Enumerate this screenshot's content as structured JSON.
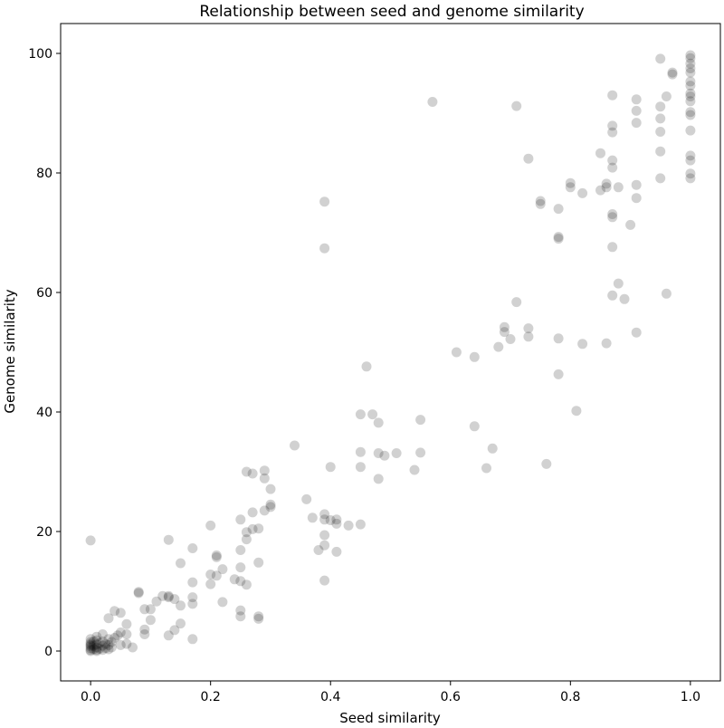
{
  "chart_data": {
    "type": "scatter",
    "title": "Relationship between seed and genome similarity",
    "xlabel": "Seed similarity",
    "ylabel": "Genome similarity",
    "xlim": [
      -0.05,
      1.05
    ],
    "ylim": [
      -5,
      105
    ],
    "xticks": [
      0.0,
      0.2,
      0.4,
      0.6,
      0.8,
      1.0
    ],
    "xtick_labels": [
      "0.0",
      "0.2",
      "0.4",
      "0.6",
      "0.8",
      "1.0"
    ],
    "yticks": [
      0,
      20,
      40,
      60,
      80,
      100
    ],
    "ytick_labels": [
      "0",
      "20",
      "40",
      "60",
      "80",
      "100"
    ],
    "grid": false,
    "marker_color": "#000000",
    "marker_alpha": 0.18,
    "points": [
      [
        0.0,
        0.2
      ],
      [
        0.0,
        0.5
      ],
      [
        0.0,
        1.0
      ],
      [
        0.0,
        1.5
      ],
      [
        0.0,
        2.0
      ],
      [
        0.0,
        0.0
      ],
      [
        0.0,
        0.8
      ],
      [
        0.0,
        1.2
      ],
      [
        0.005,
        0.3
      ],
      [
        0.005,
        0.9
      ],
      [
        0.005,
        1.6
      ],
      [
        0.01,
        0.2
      ],
      [
        0.01,
        0.6
      ],
      [
        0.01,
        1.1
      ],
      [
        0.01,
        1.8
      ],
      [
        0.01,
        2.4
      ],
      [
        0.01,
        0.0
      ],
      [
        0.015,
        0.4
      ],
      [
        0.015,
        1.3
      ],
      [
        0.02,
        0.2
      ],
      [
        0.02,
        0.9
      ],
      [
        0.02,
        1.6
      ],
      [
        0.02,
        2.8
      ],
      [
        0.025,
        0.5
      ],
      [
        0.025,
        1.2
      ],
      [
        0.03,
        0.3
      ],
      [
        0.03,
        1.0
      ],
      [
        0.03,
        2.0
      ],
      [
        0.03,
        5.5
      ],
      [
        0.035,
        0.6
      ],
      [
        0.035,
        1.5
      ],
      [
        0.04,
        2.2
      ],
      [
        0.04,
        6.7
      ],
      [
        0.045,
        2.6
      ],
      [
        0.05,
        1.0
      ],
      [
        0.05,
        3.1
      ],
      [
        0.05,
        6.4
      ],
      [
        0.06,
        1.2
      ],
      [
        0.06,
        4.5
      ],
      [
        0.06,
        2.8
      ],
      [
        0.07,
        0.6
      ],
      [
        0.08,
        9.7
      ],
      [
        0.08,
        9.9
      ],
      [
        0.09,
        2.8
      ],
      [
        0.09,
        3.6
      ],
      [
        0.09,
        7.0
      ],
      [
        0.1,
        5.2
      ],
      [
        0.1,
        7.0
      ],
      [
        0.11,
        8.3
      ],
      [
        0.12,
        9.2
      ],
      [
        0.13,
        9.2
      ],
      [
        0.13,
        9.0
      ],
      [
        0.13,
        2.6
      ],
      [
        0.13,
        18.6
      ],
      [
        0.14,
        3.5
      ],
      [
        0.14,
        8.7
      ],
      [
        0.15,
        4.6
      ],
      [
        0.15,
        7.6
      ],
      [
        0.15,
        14.7
      ],
      [
        0.17,
        2.0
      ],
      [
        0.17,
        7.9
      ],
      [
        0.17,
        9.0
      ],
      [
        0.17,
        11.5
      ],
      [
        0.17,
        17.2
      ],
      [
        0.2,
        11.2
      ],
      [
        0.2,
        12.8
      ],
      [
        0.2,
        21.0
      ],
      [
        0.21,
        12.6
      ],
      [
        0.21,
        15.7
      ],
      [
        0.21,
        16.0
      ],
      [
        0.22,
        8.2
      ],
      [
        0.22,
        13.7
      ],
      [
        0.24,
        12.0
      ],
      [
        0.25,
        5.8
      ],
      [
        0.25,
        6.8
      ],
      [
        0.25,
        11.7
      ],
      [
        0.25,
        14.0
      ],
      [
        0.25,
        16.9
      ],
      [
        0.25,
        22.0
      ],
      [
        0.26,
        11.1
      ],
      [
        0.26,
        18.7
      ],
      [
        0.26,
        19.9
      ],
      [
        0.26,
        30.0
      ],
      [
        0.27,
        20.4
      ],
      [
        0.27,
        23.2
      ],
      [
        0.27,
        29.7
      ],
      [
        0.28,
        5.4
      ],
      [
        0.28,
        5.8
      ],
      [
        0.28,
        14.8
      ],
      [
        0.28,
        20.5
      ],
      [
        0.29,
        23.5
      ],
      [
        0.29,
        28.9
      ],
      [
        0.29,
        30.2
      ],
      [
        0.3,
        24.1
      ],
      [
        0.3,
        24.5
      ],
      [
        0.3,
        27.1
      ],
      [
        0.34,
        34.4
      ],
      [
        0.36,
        25.4
      ],
      [
        0.37,
        22.3
      ],
      [
        0.38,
        16.9
      ],
      [
        0.39,
        11.8
      ],
      [
        0.39,
        17.7
      ],
      [
        0.39,
        19.4
      ],
      [
        0.39,
        22.0
      ],
      [
        0.39,
        22.9
      ],
      [
        0.39,
        67.4
      ],
      [
        0.39,
        75.2
      ],
      [
        0.4,
        21.9
      ],
      [
        0.4,
        30.8
      ],
      [
        0.41,
        16.6
      ],
      [
        0.41,
        21.3
      ],
      [
        0.41,
        22.0
      ],
      [
        0.43,
        21.0
      ],
      [
        0.45,
        21.2
      ],
      [
        0.45,
        30.8
      ],
      [
        0.45,
        33.3
      ],
      [
        0.45,
        39.6
      ],
      [
        0.46,
        47.6
      ],
      [
        0.47,
        39.6
      ],
      [
        0.48,
        28.8
      ],
      [
        0.48,
        33.1
      ],
      [
        0.48,
        38.2
      ],
      [
        0.49,
        32.7
      ],
      [
        0.51,
        33.1
      ],
      [
        0.54,
        30.3
      ],
      [
        0.55,
        33.2
      ],
      [
        0.55,
        38.7
      ],
      [
        0.57,
        91.9
      ],
      [
        0.61,
        50.0
      ],
      [
        0.64,
        37.6
      ],
      [
        0.64,
        49.2
      ],
      [
        0.66,
        30.6
      ],
      [
        0.67,
        33.9
      ],
      [
        0.68,
        50.9
      ],
      [
        0.69,
        53.4
      ],
      [
        0.69,
        54.2
      ],
      [
        0.7,
        52.2
      ],
      [
        0.71,
        58.4
      ],
      [
        0.71,
        91.2
      ],
      [
        0.73,
        52.6
      ],
      [
        0.73,
        54.0
      ],
      [
        0.73,
        82.4
      ],
      [
        0.75,
        74.8
      ],
      [
        0.75,
        75.3
      ],
      [
        0.76,
        31.3
      ],
      [
        0.78,
        46.3
      ],
      [
        0.78,
        52.3
      ],
      [
        0.78,
        69.0
      ],
      [
        0.78,
        69.3
      ],
      [
        0.78,
        74.0
      ],
      [
        0.8,
        77.6
      ],
      [
        0.8,
        78.3
      ],
      [
        0.81,
        40.2
      ],
      [
        0.82,
        51.4
      ],
      [
        0.82,
        76.6
      ],
      [
        0.85,
        77.1
      ],
      [
        0.85,
        83.3
      ],
      [
        0.86,
        51.5
      ],
      [
        0.86,
        77.6
      ],
      [
        0.86,
        78.2
      ],
      [
        0.87,
        59.5
      ],
      [
        0.87,
        67.6
      ],
      [
        0.87,
        72.6
      ],
      [
        0.87,
        73.1
      ],
      [
        0.87,
        80.9
      ],
      [
        0.87,
        82.1
      ],
      [
        0.87,
        86.8
      ],
      [
        0.87,
        87.9
      ],
      [
        0.87,
        93.0
      ],
      [
        0.88,
        61.5
      ],
      [
        0.88,
        77.6
      ],
      [
        0.89,
        58.9
      ],
      [
        0.9,
        71.3
      ],
      [
        0.91,
        53.3
      ],
      [
        0.91,
        75.8
      ],
      [
        0.91,
        78.0
      ],
      [
        0.91,
        88.4
      ],
      [
        0.91,
        90.4
      ],
      [
        0.91,
        92.3
      ],
      [
        0.95,
        79.1
      ],
      [
        0.95,
        83.6
      ],
      [
        0.95,
        86.9
      ],
      [
        0.95,
        89.1
      ],
      [
        0.95,
        91.1
      ],
      [
        0.95,
        99.1
      ],
      [
        0.96,
        59.8
      ],
      [
        0.96,
        92.8
      ],
      [
        0.97,
        96.5
      ],
      [
        0.97,
        96.8
      ],
      [
        1.0,
        79.1
      ],
      [
        1.0,
        79.9
      ],
      [
        1.0,
        82.1
      ],
      [
        1.0,
        82.9
      ],
      [
        1.0,
        87.1
      ],
      [
        1.0,
        89.7
      ],
      [
        1.0,
        90.2
      ],
      [
        1.0,
        92.0
      ],
      [
        1.0,
        92.8
      ],
      [
        1.0,
        93.3
      ],
      [
        1.0,
        94.6
      ],
      [
        1.0,
        95.3
      ],
      [
        1.0,
        96.8
      ],
      [
        1.0,
        97.5
      ],
      [
        1.0,
        98.3
      ],
      [
        1.0,
        99.2
      ],
      [
        1.0,
        99.7
      ],
      [
        0.0,
        18.5
      ]
    ]
  }
}
